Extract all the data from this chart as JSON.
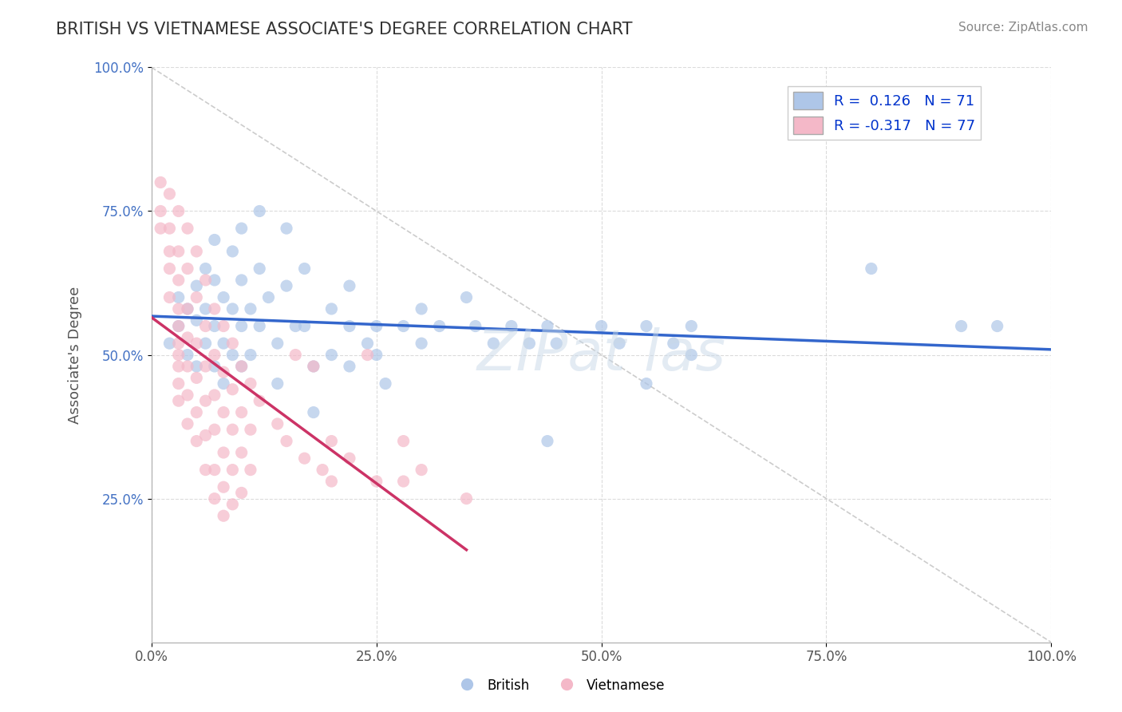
{
  "title": "BRITISH VS VIETNAMESE ASSOCIATE'S DEGREE CORRELATION CHART",
  "source_text": "Source: ZipAtlas.com",
  "xlabel": "",
  "ylabel": "Associate's Degree",
  "watermark": "ZIPat las",
  "xlim": [
    0,
    1.0
  ],
  "ylim": [
    0,
    1.0
  ],
  "xtick_labels": [
    "0.0%",
    "25.0%",
    "50.0%",
    "75.0%",
    "100.0%"
  ],
  "xtick_vals": [
    0,
    0.25,
    0.5,
    0.75,
    1.0
  ],
  "ytick_labels": [
    "25.0%",
    "50.0%",
    "75.0%",
    "100.0%"
  ],
  "ytick_vals": [
    0.25,
    0.5,
    0.75,
    1.0
  ],
  "legend_entries": [
    {
      "color": "#aec6e8",
      "R": "0.126",
      "N": "71",
      "label": "British"
    },
    {
      "color": "#f4b8c8",
      "R": "-0.317",
      "N": "77",
      "label": "Vietnamese"
    }
  ],
  "british_scatter_color": "#aec6e8",
  "vietnamese_scatter_color": "#f4b8c8",
  "british_line_color": "#3366cc",
  "vietnamese_line_color": "#cc3366",
  "british_R": 0.126,
  "british_N": 71,
  "vietnamese_R": -0.317,
  "vietnamese_N": 77,
  "british_points": [
    [
      0.02,
      0.52
    ],
    [
      0.03,
      0.6
    ],
    [
      0.03,
      0.55
    ],
    [
      0.04,
      0.58
    ],
    [
      0.04,
      0.5
    ],
    [
      0.05,
      0.62
    ],
    [
      0.05,
      0.56
    ],
    [
      0.05,
      0.48
    ],
    [
      0.06,
      0.65
    ],
    [
      0.06,
      0.58
    ],
    [
      0.06,
      0.52
    ],
    [
      0.07,
      0.7
    ],
    [
      0.07,
      0.63
    ],
    [
      0.07,
      0.55
    ],
    [
      0.07,
      0.48
    ],
    [
      0.08,
      0.6
    ],
    [
      0.08,
      0.52
    ],
    [
      0.08,
      0.45
    ],
    [
      0.09,
      0.68
    ],
    [
      0.09,
      0.58
    ],
    [
      0.09,
      0.5
    ],
    [
      0.1,
      0.72
    ],
    [
      0.1,
      0.63
    ],
    [
      0.1,
      0.55
    ],
    [
      0.1,
      0.48
    ],
    [
      0.11,
      0.58
    ],
    [
      0.11,
      0.5
    ],
    [
      0.12,
      0.75
    ],
    [
      0.12,
      0.65
    ],
    [
      0.12,
      0.55
    ],
    [
      0.13,
      0.6
    ],
    [
      0.14,
      0.52
    ],
    [
      0.14,
      0.45
    ],
    [
      0.15,
      0.72
    ],
    [
      0.15,
      0.62
    ],
    [
      0.16,
      0.55
    ],
    [
      0.17,
      0.65
    ],
    [
      0.17,
      0.55
    ],
    [
      0.18,
      0.48
    ],
    [
      0.18,
      0.4
    ],
    [
      0.2,
      0.58
    ],
    [
      0.2,
      0.5
    ],
    [
      0.22,
      0.62
    ],
    [
      0.22,
      0.55
    ],
    [
      0.22,
      0.48
    ],
    [
      0.24,
      0.52
    ],
    [
      0.25,
      0.55
    ],
    [
      0.25,
      0.5
    ],
    [
      0.26,
      0.45
    ],
    [
      0.28,
      0.55
    ],
    [
      0.3,
      0.58
    ],
    [
      0.3,
      0.52
    ],
    [
      0.32,
      0.55
    ],
    [
      0.35,
      0.6
    ],
    [
      0.36,
      0.55
    ],
    [
      0.38,
      0.52
    ],
    [
      0.4,
      0.55
    ],
    [
      0.42,
      0.52
    ],
    [
      0.44,
      0.55
    ],
    [
      0.44,
      0.35
    ],
    [
      0.45,
      0.52
    ],
    [
      0.5,
      0.55
    ],
    [
      0.52,
      0.52
    ],
    [
      0.55,
      0.55
    ],
    [
      0.55,
      0.45
    ],
    [
      0.58,
      0.52
    ],
    [
      0.6,
      0.55
    ],
    [
      0.6,
      0.5
    ],
    [
      0.8,
      0.65
    ],
    [
      0.9,
      0.55
    ],
    [
      0.94,
      0.55
    ]
  ],
  "vietnamese_points": [
    [
      0.01,
      0.8
    ],
    [
      0.01,
      0.75
    ],
    [
      0.01,
      0.72
    ],
    [
      0.02,
      0.78
    ],
    [
      0.02,
      0.72
    ],
    [
      0.02,
      0.68
    ],
    [
      0.02,
      0.65
    ],
    [
      0.02,
      0.6
    ],
    [
      0.03,
      0.75
    ],
    [
      0.03,
      0.68
    ],
    [
      0.03,
      0.63
    ],
    [
      0.03,
      0.58
    ],
    [
      0.03,
      0.55
    ],
    [
      0.03,
      0.52
    ],
    [
      0.03,
      0.5
    ],
    [
      0.03,
      0.48
    ],
    [
      0.03,
      0.45
    ],
    [
      0.03,
      0.42
    ],
    [
      0.04,
      0.72
    ],
    [
      0.04,
      0.65
    ],
    [
      0.04,
      0.58
    ],
    [
      0.04,
      0.53
    ],
    [
      0.04,
      0.48
    ],
    [
      0.04,
      0.43
    ],
    [
      0.04,
      0.38
    ],
    [
      0.05,
      0.68
    ],
    [
      0.05,
      0.6
    ],
    [
      0.05,
      0.52
    ],
    [
      0.05,
      0.46
    ],
    [
      0.05,
      0.4
    ],
    [
      0.05,
      0.35
    ],
    [
      0.06,
      0.63
    ],
    [
      0.06,
      0.55
    ],
    [
      0.06,
      0.48
    ],
    [
      0.06,
      0.42
    ],
    [
      0.06,
      0.36
    ],
    [
      0.06,
      0.3
    ],
    [
      0.07,
      0.58
    ],
    [
      0.07,
      0.5
    ],
    [
      0.07,
      0.43
    ],
    [
      0.07,
      0.37
    ],
    [
      0.07,
      0.3
    ],
    [
      0.07,
      0.25
    ],
    [
      0.08,
      0.55
    ],
    [
      0.08,
      0.47
    ],
    [
      0.08,
      0.4
    ],
    [
      0.08,
      0.33
    ],
    [
      0.08,
      0.27
    ],
    [
      0.08,
      0.22
    ],
    [
      0.09,
      0.52
    ],
    [
      0.09,
      0.44
    ],
    [
      0.09,
      0.37
    ],
    [
      0.09,
      0.3
    ],
    [
      0.09,
      0.24
    ],
    [
      0.1,
      0.48
    ],
    [
      0.1,
      0.4
    ],
    [
      0.1,
      0.33
    ],
    [
      0.1,
      0.26
    ],
    [
      0.11,
      0.45
    ],
    [
      0.11,
      0.37
    ],
    [
      0.11,
      0.3
    ],
    [
      0.12,
      0.42
    ],
    [
      0.14,
      0.38
    ],
    [
      0.15,
      0.35
    ],
    [
      0.16,
      0.5
    ],
    [
      0.17,
      0.32
    ],
    [
      0.18,
      0.48
    ],
    [
      0.19,
      0.3
    ],
    [
      0.2,
      0.35
    ],
    [
      0.2,
      0.28
    ],
    [
      0.22,
      0.32
    ],
    [
      0.24,
      0.5
    ],
    [
      0.25,
      0.28
    ],
    [
      0.28,
      0.35
    ],
    [
      0.28,
      0.28
    ],
    [
      0.3,
      0.3
    ],
    [
      0.35,
      0.25
    ]
  ],
  "background_color": "#ffffff",
  "grid_color": "#cccccc",
  "title_color": "#333333",
  "axis_label_color": "#555555"
}
